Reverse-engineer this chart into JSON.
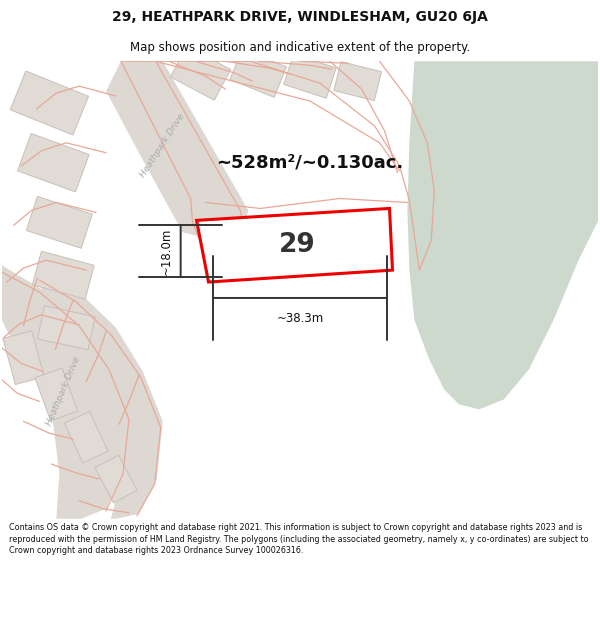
{
  "title": "29, HEATHPARK DRIVE, WINDLESHAM, GU20 6JA",
  "subtitle": "Map shows position and indicative extent of the property.",
  "footer": "Contains OS data © Crown copyright and database right 2021. This information is subject to Crown copyright and database rights 2023 and is reproduced with the permission of HM Land Registry. The polygons (including the associated geometry, namely x, y co-ordinates) are subject to Crown copyright and database rights 2023 Ordnance Survey 100026316.",
  "map_bg": "#ede9e4",
  "green_color": "#ccd9cc",
  "road_line_color": "#e8a898",
  "building_color": "#e0dbd5",
  "building_edge": "#c8c0b8",
  "highlight_color": "#ee0000",
  "area_label": "~528m²/~0.130ac.",
  "width_label": "~38.3m",
  "height_label": "~18.0m",
  "number_label": "29",
  "road_label_color": "#aaaaaa",
  "title_fontsize": 10,
  "subtitle_fontsize": 8.5,
  "figsize": [
    6.0,
    6.25
  ],
  "dpi": 100
}
